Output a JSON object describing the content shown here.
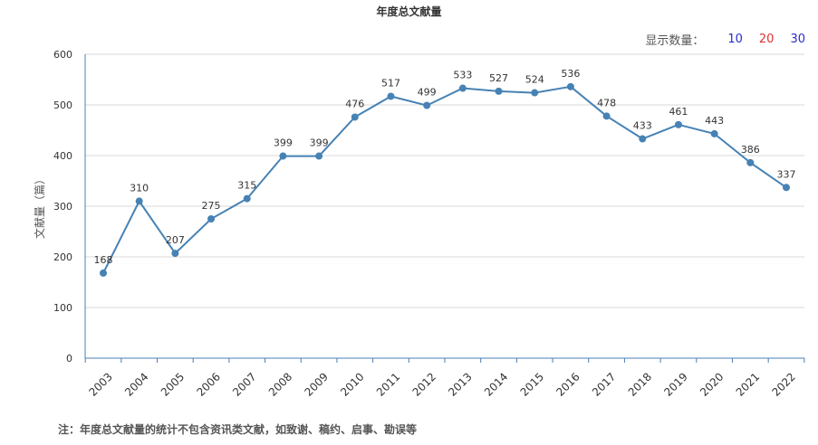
{
  "chart_data": {
    "type": "line",
    "title": "年度总文献量",
    "ylabel": "文献量（篇）",
    "xlabel": "",
    "categories": [
      "2003",
      "2004",
      "2005",
      "2006",
      "2007",
      "2008",
      "2009",
      "2010",
      "2011",
      "2012",
      "2013",
      "2014",
      "2015",
      "2016",
      "2017",
      "2018",
      "2019",
      "2020",
      "2021",
      "2022"
    ],
    "values": [
      168,
      310,
      207,
      275,
      315,
      399,
      399,
      476,
      517,
      499,
      533,
      527,
      524,
      536,
      478,
      433,
      461,
      443,
      386,
      337
    ],
    "ylim": [
      0,
      600
    ],
    "yticks": [
      "0",
      "100",
      "200",
      "300",
      "400",
      "500",
      "600"
    ],
    "grid": true,
    "line_color": "#4682b4"
  },
  "display_count": {
    "label": "显示数量：",
    "options": [
      {
        "label": "10",
        "color": "#2b2bcc"
      },
      {
        "label": "20",
        "color": "#e03030"
      },
      {
        "label": "30",
        "color": "#2b2bcc"
      }
    ]
  },
  "footnote": "注：年度总文献量的统计不包含资讯类文献，如致谢、稿约、启事、勘误等"
}
